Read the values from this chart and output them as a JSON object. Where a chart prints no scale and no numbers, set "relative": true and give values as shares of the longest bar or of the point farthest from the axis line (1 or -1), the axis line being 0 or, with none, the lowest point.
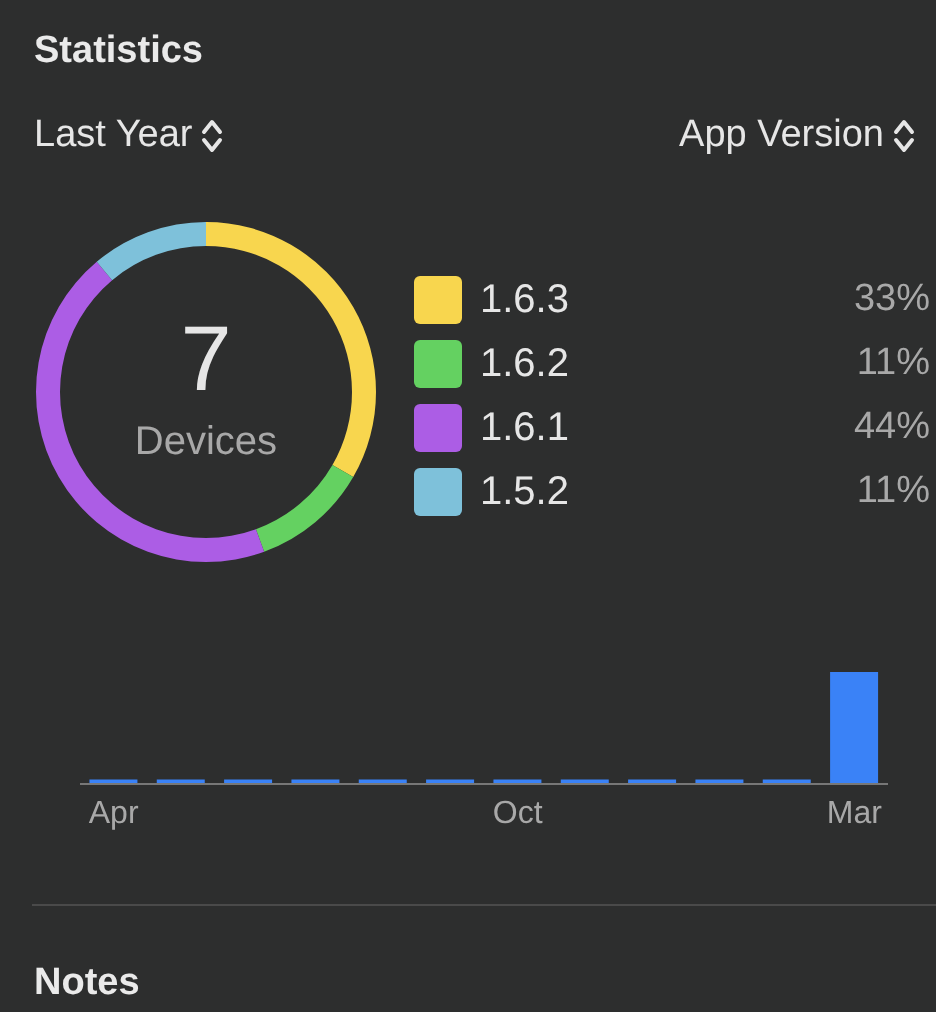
{
  "chart_data": [
    {
      "type": "donut",
      "title": "Statistics",
      "annotations": [
        "Last Year",
        "App Version",
        "7",
        "Devices"
      ],
      "categories": [
        "1.6.3",
        "1.6.2",
        "1.6.1",
        "1.5.2"
      ],
      "values": [
        33,
        11,
        44,
        11
      ],
      "value_labels": [
        "33%",
        "11%",
        "44%",
        "11%"
      ],
      "colors": [
        "#f8d64e",
        "#64d161",
        "#ac5de5",
        "#7ec1da"
      ],
      "legend": "right"
    },
    {
      "type": "bar",
      "relative": true,
      "categories": [
        "Apr",
        null,
        null,
        null,
        null,
        null,
        "Oct",
        null,
        null,
        null,
        null,
        "Mar"
      ],
      "values": [
        0.04,
        0.04,
        0.04,
        0.04,
        0.04,
        0.04,
        0.04,
        0.04,
        0.04,
        0.04,
        0.04,
        1
      ],
      "color": "#3a82f7",
      "annotations": [
        "Notes"
      ]
    }
  ]
}
